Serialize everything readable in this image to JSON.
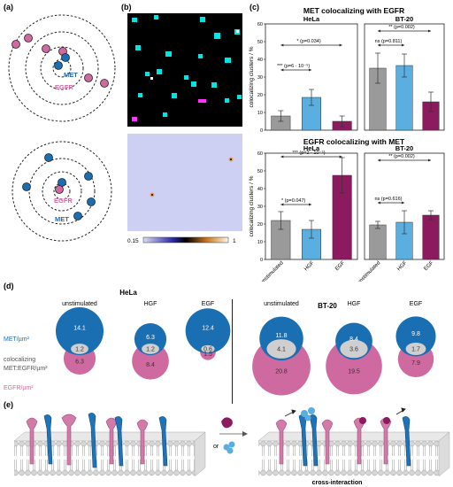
{
  "panels": {
    "a": "(a)",
    "b": "(b)",
    "c": "(c)",
    "d": "(d)",
    "e": "(e)"
  },
  "panel_a": {
    "top": {
      "label_met": "MET",
      "label_egfr": "EGFR"
    },
    "bottom": {
      "label_egfr": "EGFR",
      "label_met": "MET"
    }
  },
  "panel_b": {
    "colorbar_min": "0.15",
    "colorbar_max": "1"
  },
  "colors": {
    "met_blue": "#1a6fb3",
    "egfr_pink": "#cf6aa0",
    "gray_bar": "#9a9a9a",
    "light_blue_bar": "#5aaee0",
    "egf_bar": "#8c1a5e",
    "overlap_gray": "#cfcfcf"
  },
  "chart_data": [
    {
      "type": "bar",
      "title": "MET colocalizing with EGFR",
      "subtitle": "HeLa",
      "ylabel": "colocalizing clusters / %",
      "ylim": [
        0,
        60
      ],
      "yticks": [
        "0",
        "10",
        "20",
        "30",
        "40",
        "50",
        "60"
      ],
      "categories": [
        "unstimulated",
        "HGF",
        "EGF"
      ],
      "values": [
        8,
        18.5,
        5
      ],
      "errors": [
        3,
        4.5,
        3
      ],
      "annotations": [
        "*** (p=6 · 10⁻⁵)",
        "* (p=0.034)"
      ]
    },
    {
      "type": "bar",
      "title": "",
      "subtitle": "BT-20",
      "ylim": [
        0,
        60
      ],
      "categories": [
        "unstimulated",
        "HGF",
        "EGF"
      ],
      "values": [
        35,
        36.5,
        16
      ],
      "errors": [
        8.5,
        6.5,
        5.5
      ],
      "annotations": [
        "ns (p=0.811)",
        "** (p=0.002)"
      ]
    },
    {
      "type": "bar",
      "title": "EGFR colocalizing with MET",
      "subtitle": "HeLa",
      "ylabel": "colocalizing clusters / %",
      "ylim": [
        0,
        60
      ],
      "yticks": [
        "0",
        "10",
        "20",
        "30",
        "40",
        "50",
        "60"
      ],
      "categories": [
        "unstimulated",
        "HGF",
        "EGF"
      ],
      "values": [
        22,
        17,
        47.5
      ],
      "errors": [
        5,
        5,
        10
      ],
      "annotations": [
        "* (p=0.047)",
        "*** (p=2 · 10⁻⁵)"
      ]
    },
    {
      "type": "bar",
      "title": "",
      "subtitle": "BT-20",
      "ylim": [
        0,
        60
      ],
      "categories": [
        "unstimulated",
        "HGF",
        "EGF"
      ],
      "values": [
        19.5,
        21,
        25
      ],
      "errors": [
        2,
        6.5,
        2.5
      ],
      "annotations": [
        "ns (p=0.616)",
        "** (p=0.002)"
      ]
    }
  ],
  "panel_d": {
    "hela_title": "HeLa",
    "bt20_title": "BT-20",
    "legend_met": "MET/µm²",
    "legend_coloc_1": "colocalizing",
    "legend_coloc_2": "MET:EGFR/µm²",
    "legend_egfr": "EGFR/µm²",
    "hela": [
      {
        "condition": "unstimulated",
        "met": "14.1",
        "coloc": "1.2",
        "egfr": "6.3"
      },
      {
        "condition": "HGF",
        "met": "6.3",
        "coloc": "1.2",
        "egfr": "8.4"
      },
      {
        "condition": "EGF",
        "met": "12.4",
        "coloc": "0.6",
        "egfr": "1.5"
      }
    ],
    "bt20": [
      {
        "condition": "unstimulated",
        "met": "11.8",
        "coloc": "4.1",
        "egfr": "20.8"
      },
      {
        "condition": "HGF",
        "met": "8.4",
        "coloc": "3.6",
        "egfr": "19.5"
      },
      {
        "condition": "EGF",
        "met": "9.8",
        "coloc": "1.7",
        "egfr": "7.9"
      }
    ]
  },
  "panel_e": {
    "or_label": "or",
    "caption": "cross-interaction"
  }
}
